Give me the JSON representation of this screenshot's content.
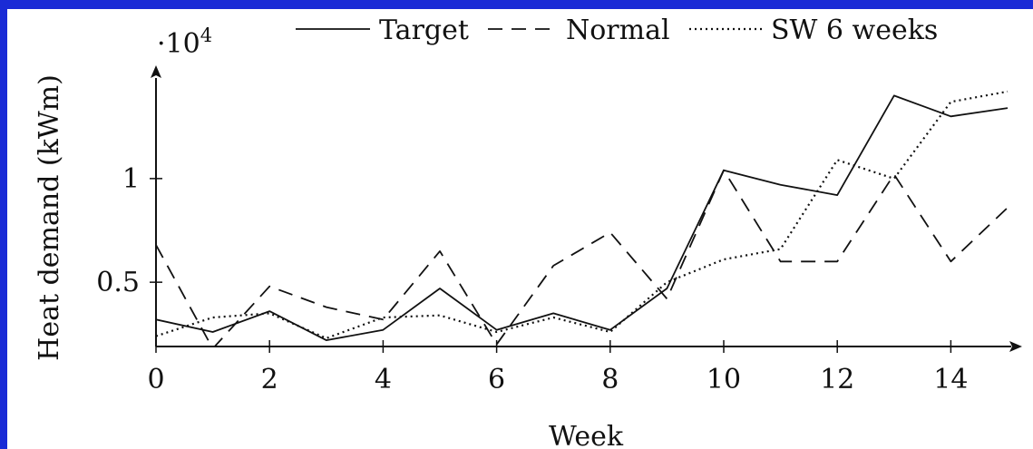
{
  "chart_data": {
    "type": "line",
    "xlabel": "Week",
    "ylabel": "Heat demand (kWm)",
    "y_multiplier_label": "·10",
    "y_multiplier_exponent": "4",
    "xlim": [
      0,
      15
    ],
    "ylim": [
      1900,
      14500
    ],
    "x_ticks": [
      0,
      2,
      4,
      6,
      8,
      10,
      12,
      14
    ],
    "x_tick_labels": [
      "0",
      "2",
      "4",
      "6",
      "8",
      "10",
      "12",
      "14"
    ],
    "y_ticks": [
      5000,
      10000
    ],
    "y_tick_labels": [
      "0.5",
      "1"
    ],
    "grid": false,
    "legend": {
      "placement": "top-center",
      "orientation": "horizontal"
    },
    "x": [
      0,
      1,
      2,
      3,
      4,
      5,
      6,
      7,
      8,
      9,
      10,
      11,
      12,
      13,
      14,
      15
    ],
    "series": [
      {
        "name": "Target",
        "style": "solid",
        "values": [
          3200,
          2600,
          3600,
          2200,
          2700,
          4700,
          2700,
          3500,
          2700,
          4700,
          10400,
          9700,
          9200,
          14000,
          13000,
          13400
        ]
      },
      {
        "name": "Normal",
        "style": "dashed",
        "values": [
          6800,
          1800,
          4800,
          3800,
          3200,
          6500,
          2000,
          5800,
          7400,
          4200,
          10400,
          6000,
          6000,
          10200,
          6000,
          8600
        ]
      },
      {
        "name": "SW 6 weeks",
        "style": "dotted",
        "values": [
          2400,
          3300,
          3500,
          2300,
          3300,
          3400,
          2600,
          3300,
          2600,
          5000,
          6100,
          6600,
          10900,
          10000,
          13700,
          14200
        ]
      }
    ]
  }
}
